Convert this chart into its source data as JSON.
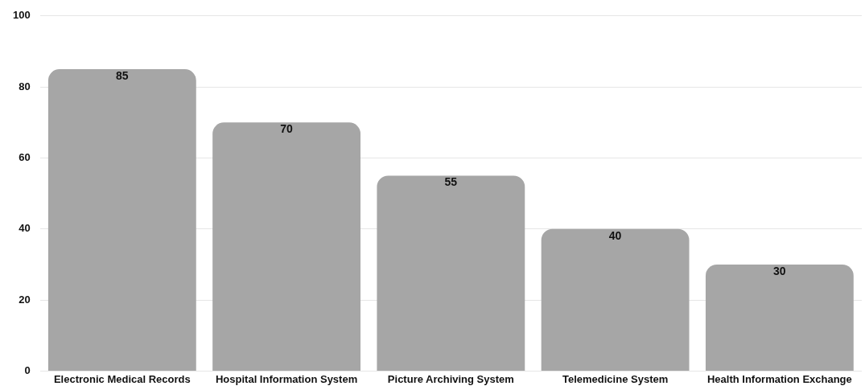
{
  "chart_data": {
    "type": "bar",
    "categories": [
      "Electronic Medical Records",
      "Hospital Information System",
      "Picture Archiving System",
      "Telemedicine System",
      "Health Information Exchange"
    ],
    "values": [
      85,
      70,
      55,
      40,
      30
    ],
    "color": "#a6a6a6",
    "ylim": [
      0,
      100
    ],
    "yticks": [
      0,
      20,
      40,
      60,
      80,
      100
    ],
    "grid": "y",
    "data_labels": true
  }
}
